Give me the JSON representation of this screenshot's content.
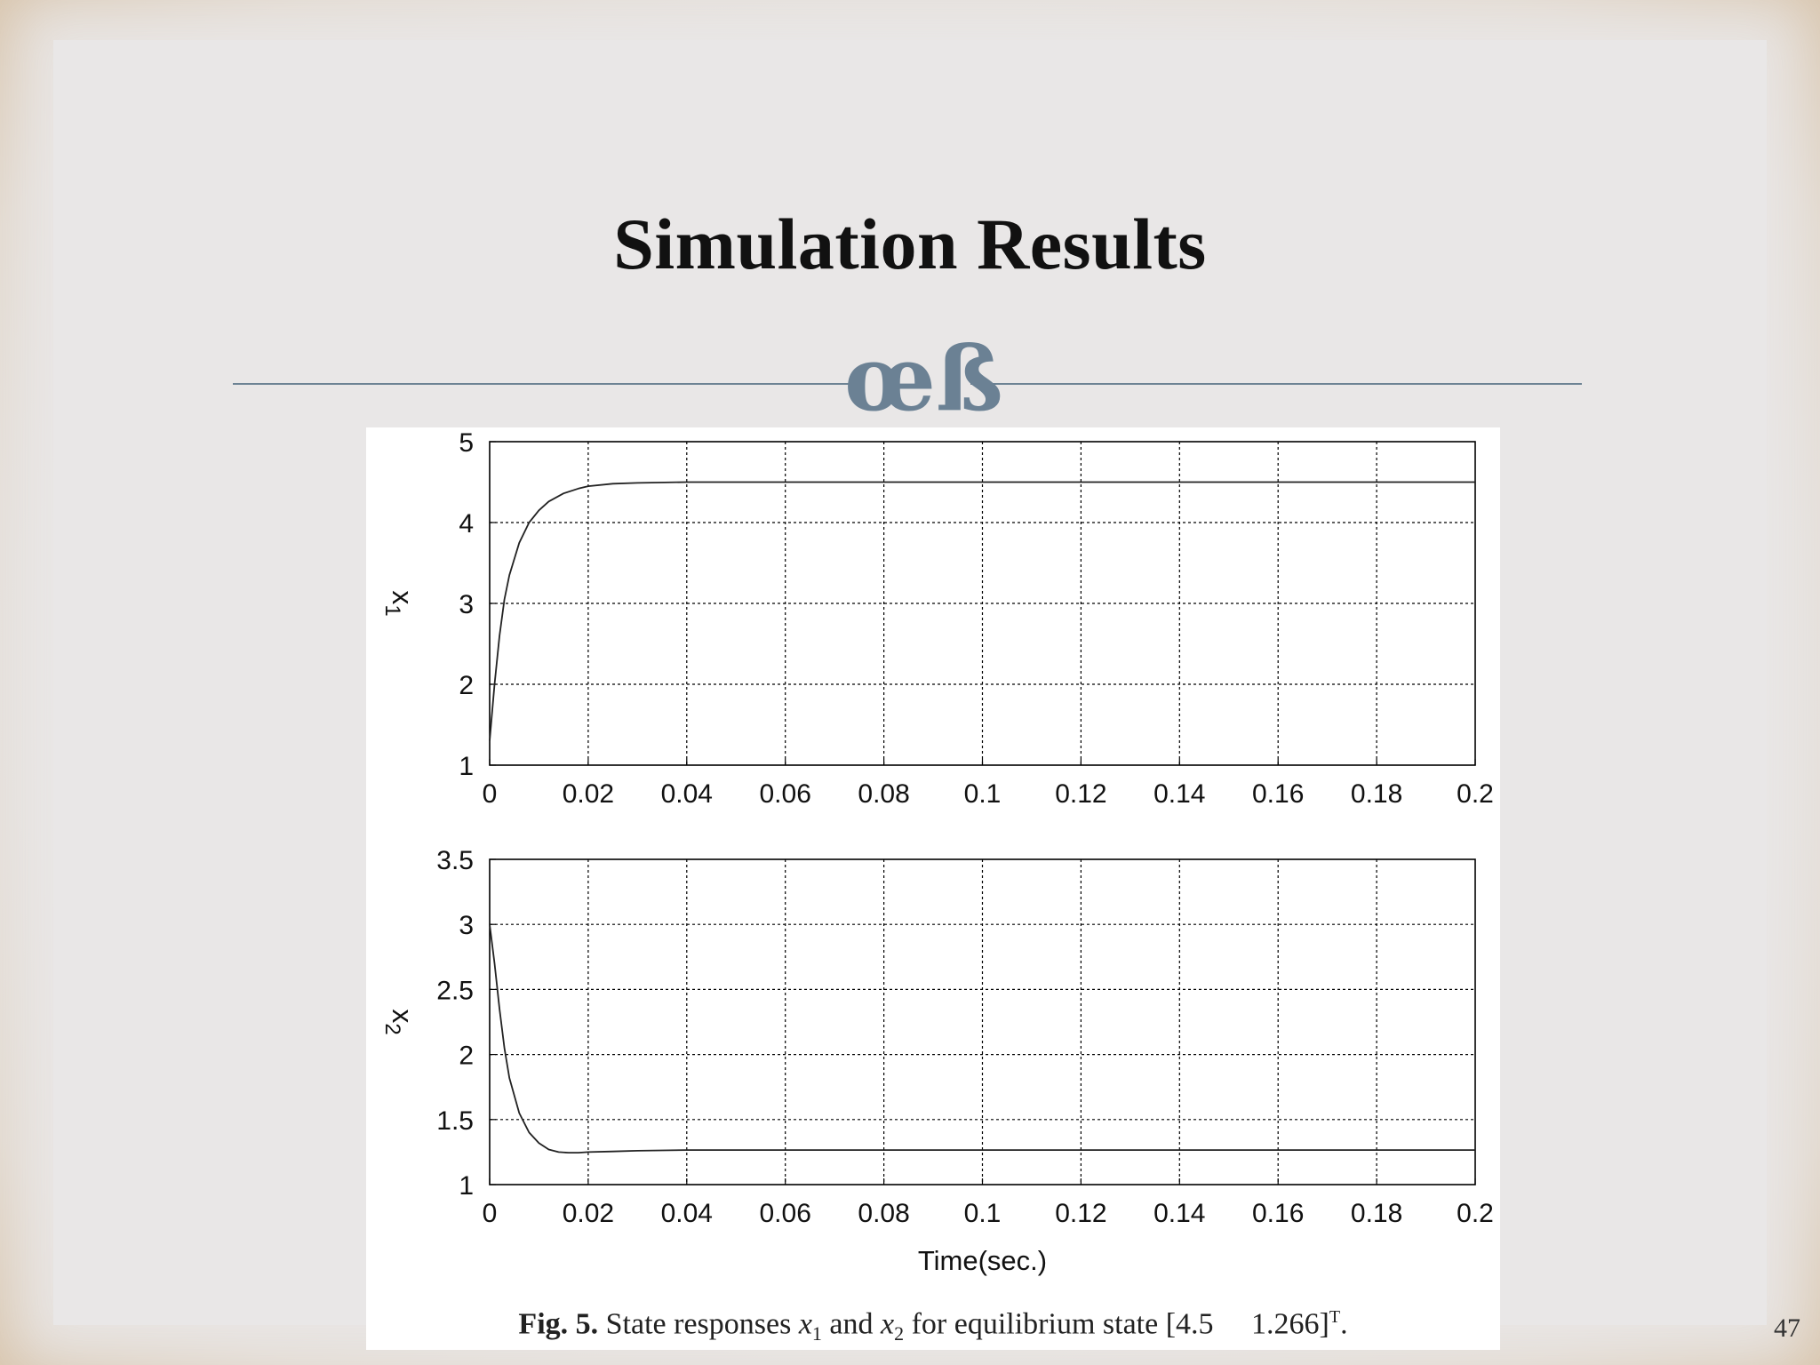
{
  "slide": {
    "title": "Simulation Results",
    "ornament": "œß",
    "page_number": "47"
  },
  "caption": {
    "prefix": "Fig. 5.",
    "text_1": "State responses",
    "var_1": "x",
    "sub_1": "1",
    "text_2": "and",
    "var_2": "x",
    "sub_2": "2",
    "text_3": "for equilibrium state [4.5  1.266]",
    "sup": "T",
    "text_4": "."
  },
  "colors": {
    "line": "#222222",
    "grid": "#000000",
    "divider": "#6d8394"
  },
  "chart_data": [
    {
      "type": "line",
      "ylabel": "x",
      "ylabel_sub": "1",
      "xlabel": "",
      "xlim": [
        0,
        0.2
      ],
      "ylim": [
        1,
        5
      ],
      "xticks": [
        "0",
        "0.02",
        "0.04",
        "0.06",
        "0.08",
        "0.1",
        "0.12",
        "0.14",
        "0.16",
        "0.18",
        "0.2"
      ],
      "yticks": [
        "1",
        "2",
        "3",
        "4",
        "5"
      ],
      "grid": true,
      "series": [
        {
          "x": [
            0,
            0.001,
            0.002,
            0.003,
            0.004,
            0.006,
            0.008,
            0.01,
            0.012,
            0.015,
            0.018,
            0.02,
            0.025,
            0.03,
            0.04,
            0.06,
            0.1,
            0.15,
            0.2
          ],
          "y": [
            1.3,
            2.0,
            2.6,
            3.05,
            3.35,
            3.75,
            4.0,
            4.15,
            4.26,
            4.36,
            4.42,
            4.45,
            4.48,
            4.49,
            4.5,
            4.5,
            4.5,
            4.5,
            4.5
          ]
        }
      ]
    },
    {
      "type": "line",
      "ylabel": "x",
      "ylabel_sub": "2",
      "xlabel": "Time(sec.)",
      "xlim": [
        0,
        0.2
      ],
      "ylim": [
        1,
        3.5
      ],
      "xticks": [
        "0",
        "0.02",
        "0.04",
        "0.06",
        "0.08",
        "0.1",
        "0.12",
        "0.14",
        "0.16",
        "0.18",
        "0.2"
      ],
      "yticks": [
        "1",
        "1.5",
        "2",
        "2.5",
        "3",
        "3.5"
      ],
      "grid": true,
      "series": [
        {
          "x": [
            0,
            0.001,
            0.002,
            0.003,
            0.004,
            0.006,
            0.008,
            0.01,
            0.012,
            0.014,
            0.016,
            0.018,
            0.02,
            0.025,
            0.03,
            0.04,
            0.06,
            0.1,
            0.15,
            0.2
          ],
          "y": [
            3.0,
            2.7,
            2.35,
            2.05,
            1.82,
            1.55,
            1.4,
            1.32,
            1.27,
            1.25,
            1.245,
            1.245,
            1.25,
            1.255,
            1.26,
            1.266,
            1.266,
            1.266,
            1.266,
            1.266
          ]
        }
      ]
    }
  ]
}
